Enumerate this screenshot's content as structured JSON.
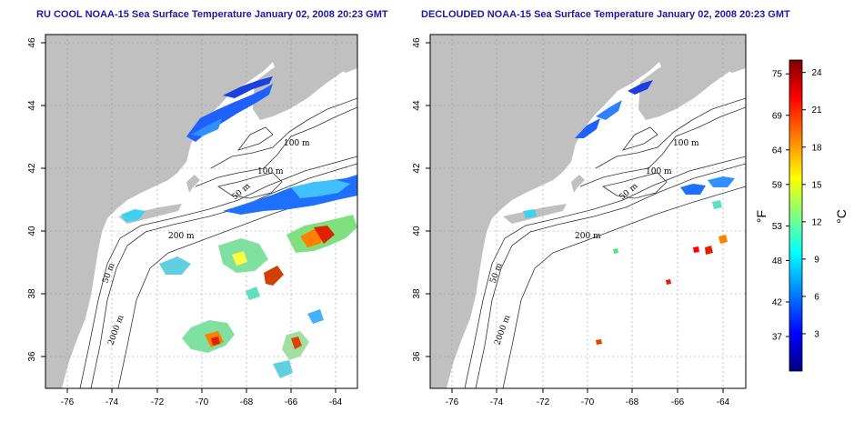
{
  "titles": {
    "left": "RU COOL NOAA-15 Sea Surface Temperature January 02, 2008 20:23 GMT",
    "right": "DECLOUDED NOAA-15 Sea Surface Temperature January 02, 2008 20:23 GMT"
  },
  "axes": {
    "x_ticks": [
      "-76",
      "-74",
      "-72",
      "-70",
      "-68",
      "-66",
      "-64"
    ],
    "y_ticks": [
      "46",
      "44",
      "42",
      "40",
      "38",
      "36"
    ],
    "x_range": [
      -77.2,
      -63.0
    ],
    "y_range": [
      35.0,
      46.0
    ],
    "grid": "dotted"
  },
  "contour_labels": {
    "left": [
      "100 m",
      "100 m",
      "50 m",
      "200 m",
      "50 m",
      "2000 m"
    ],
    "right": [
      "100 m",
      "100 m",
      "50 m",
      "200 m",
      "50 m",
      "2000 m"
    ]
  },
  "colorbar": {
    "fahrenheit_label": "°F",
    "celsius_label": "°C",
    "fahrenheit_ticks": [
      "75",
      "69",
      "64",
      "59",
      "53",
      "48",
      "42",
      "37"
    ],
    "celsius_ticks": [
      "24",
      "21",
      "18",
      "15",
      "12",
      "9",
      "6",
      "3"
    ],
    "fahrenheit_values": [
      75,
      69,
      64,
      59,
      53,
      48,
      42,
      37
    ],
    "celsius_values": [
      24,
      21,
      18,
      15,
      12,
      9,
      6,
      3
    ],
    "range_celsius": [
      0,
      25
    ],
    "colors": [
      "#00007f",
      "#0000ff",
      "#0080ff",
      "#00ffff",
      "#80ff80",
      "#ffff00",
      "#ff8000",
      "#ff0000",
      "#7f0000"
    ]
  },
  "colors": {
    "land": "#c0c0c0",
    "water": "#ffffff",
    "title": "#1a1aa6"
  }
}
